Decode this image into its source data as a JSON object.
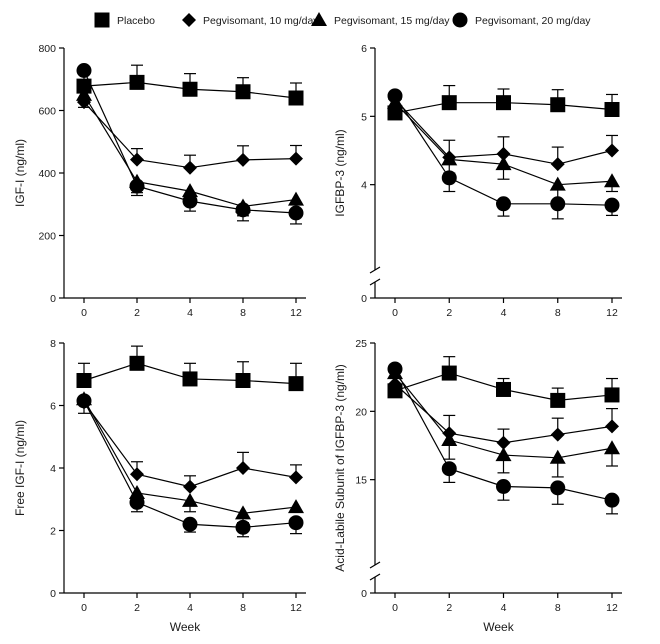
{
  "chart_data": {
    "type": "line",
    "legend": {
      "placement": "top",
      "entries": [
        {
          "name": "Placebo",
          "marker": "square"
        },
        {
          "name": "Pegvisomant, 10 mg/day",
          "marker": "diamond"
        },
        {
          "name": "Pegvisomant, 15 mg/day",
          "marker": "triangle"
        },
        {
          "name": "Pegvisomant, 20 mg/day",
          "marker": "circle"
        }
      ]
    },
    "panels": [
      {
        "id": "igf1",
        "ylabel": "IGF-I (ng/ml)",
        "xlabel": "",
        "categories": [
          "0",
          "2",
          "4",
          "8",
          "12"
        ],
        "ylim": [
          0,
          800
        ],
        "yticks": [
          0,
          200,
          400,
          600,
          800
        ],
        "axis_break": false,
        "series": [
          {
            "name": "Placebo",
            "values": [
              678,
              690,
              668,
              660,
              640
            ],
            "err_up": [
              40,
              55,
              50,
              45,
              48
            ],
            "err_down": [
              0,
              0,
              0,
              0,
              0
            ]
          },
          {
            "name": "Pegvisomant, 10 mg/day",
            "values": [
              627,
              443,
              417,
              442,
              446
            ],
            "err_up": [
              0,
              35,
              40,
              45,
              42
            ],
            "err_down": [
              0,
              0,
              0,
              0,
              0
            ]
          },
          {
            "name": "Pegvisomant, 15 mg/day",
            "values": [
              650,
              372,
              342,
              293,
              315
            ],
            "err_up": [
              0,
              0,
              0,
              0,
              0
            ],
            "err_down": [
              40,
              35,
              40,
              30,
              0
            ]
          },
          {
            "name": "Pegvisomant, 20 mg/day",
            "values": [
              728,
              358,
              310,
              282,
              272
            ],
            "err_up": [
              0,
              0,
              0,
              0,
              0
            ],
            "err_down": [
              0,
              30,
              32,
              35,
              35
            ]
          }
        ]
      },
      {
        "id": "igfbp3",
        "ylabel": "IGFBP-3 (ng/ml)",
        "xlabel": "",
        "categories": [
          "0",
          "2",
          "4",
          "8",
          "12"
        ],
        "ylim": [
          3,
          6
        ],
        "yticks": [
          4,
          5,
          6
        ],
        "axis_zero_label": "0",
        "axis_break": true,
        "series": [
          {
            "name": "Placebo",
            "values": [
              5.05,
              5.2,
              5.2,
              5.17,
              5.1
            ],
            "err_up": [
              0,
              0.25,
              0.2,
              0.22,
              0.22
            ],
            "err_down": [
              0,
              0,
              0,
              0,
              0
            ]
          },
          {
            "name": "Pegvisomant, 10 mg/day",
            "values": [
              5.25,
              4.4,
              4.45,
              4.3,
              4.5
            ],
            "err_up": [
              0,
              0.25,
              0.25,
              0.25,
              0.22
            ],
            "err_down": [
              0,
              0,
              0,
              0,
              0
            ]
          },
          {
            "name": "Pegvisomant, 15 mg/day",
            "values": [
              5.2,
              4.37,
              4.3,
              4.0,
              4.05
            ],
            "err_up": [
              0,
              0,
              0,
              0,
              0
            ],
            "err_down": [
              0,
              0.2,
              0.22,
              0.25,
              0.15
            ]
          },
          {
            "name": "Pegvisomant, 20 mg/day",
            "values": [
              5.3,
              4.1,
              3.72,
              3.72,
              3.7
            ],
            "err_up": [
              0,
              0,
              0,
              0,
              0
            ],
            "err_down": [
              0,
              0.2,
              0.18,
              0.22,
              0.15
            ]
          }
        ]
      },
      {
        "id": "freeigf1",
        "ylabel": "Free IGF-I (ng/ml)",
        "xlabel": "Week",
        "categories": [
          "0",
          "2",
          "4",
          "8",
          "12"
        ],
        "ylim": [
          0,
          8
        ],
        "yticks": [
          0,
          2,
          4,
          6,
          8
        ],
        "axis_break": false,
        "series": [
          {
            "name": "Placebo",
            "values": [
              6.8,
              7.35,
              6.85,
              6.8,
              6.7
            ],
            "err_up": [
              0.55,
              0.55,
              0.5,
              0.6,
              0.65
            ],
            "err_down": [
              0,
              0,
              0,
              0,
              0
            ]
          },
          {
            "name": "Pegvisomant, 10 mg/day",
            "values": [
              6.1,
              3.8,
              3.4,
              4.0,
              3.7
            ],
            "err_up": [
              0,
              0.4,
              0.35,
              0.5,
              0.4
            ],
            "err_down": [
              0,
              0,
              0,
              0,
              0
            ]
          },
          {
            "name": "Pegvisomant, 15 mg/day",
            "values": [
              6.2,
              3.2,
              2.95,
              2.55,
              2.75
            ],
            "err_up": [
              0,
              0,
              0,
              0,
              0
            ],
            "err_down": [
              0.45,
              0.35,
              0.35,
              0.3,
              0
            ]
          },
          {
            "name": "Pegvisomant, 20 mg/day",
            "values": [
              6.15,
              2.9,
              2.2,
              2.1,
              2.25
            ],
            "err_up": [
              0,
              0,
              0,
              0,
              0
            ],
            "err_down": [
              0,
              0.3,
              0.25,
              0.3,
              0.35
            ]
          }
        ]
      },
      {
        "id": "als",
        "ylabel": "Acid-Labile Subunit of IGFBP-3 (ng/ml)",
        "xlabel": "Week",
        "categories": [
          "0",
          "2",
          "4",
          "8",
          "12"
        ],
        "ylim": [
          10,
          25
        ],
        "yticks": [
          15,
          20,
          25
        ],
        "axis_zero_label": "0",
        "axis_break": true,
        "series": [
          {
            "name": "Placebo",
            "values": [
              21.5,
              22.8,
              21.6,
              20.8,
              21.2
            ],
            "err_up": [
              0,
              1.2,
              0.8,
              0.9,
              1.2
            ],
            "err_down": [
              0,
              0,
              0,
              0,
              0
            ]
          },
          {
            "name": "Pegvisomant, 10 mg/day",
            "values": [
              22.0,
              18.4,
              17.7,
              18.3,
              18.9
            ],
            "err_up": [
              0,
              1.3,
              1.0,
              1.2,
              1.3
            ],
            "err_down": [
              0,
              0,
              0,
              0,
              0
            ]
          },
          {
            "name": "Pegvisomant, 15 mg/day",
            "values": [
              22.8,
              17.9,
              16.8,
              16.6,
              17.3
            ],
            "err_up": [
              0,
              0,
              0,
              0,
              0
            ],
            "err_down": [
              0,
              1.4,
              1.3,
              1.4,
              1.3
            ]
          },
          {
            "name": "Pegvisomant, 20 mg/day",
            "values": [
              23.1,
              15.8,
              14.5,
              14.4,
              13.5
            ],
            "err_up": [
              0,
              0,
              0,
              0,
              0
            ],
            "err_down": [
              0,
              1.0,
              1.0,
              1.2,
              1.0
            ]
          }
        ]
      }
    ]
  }
}
